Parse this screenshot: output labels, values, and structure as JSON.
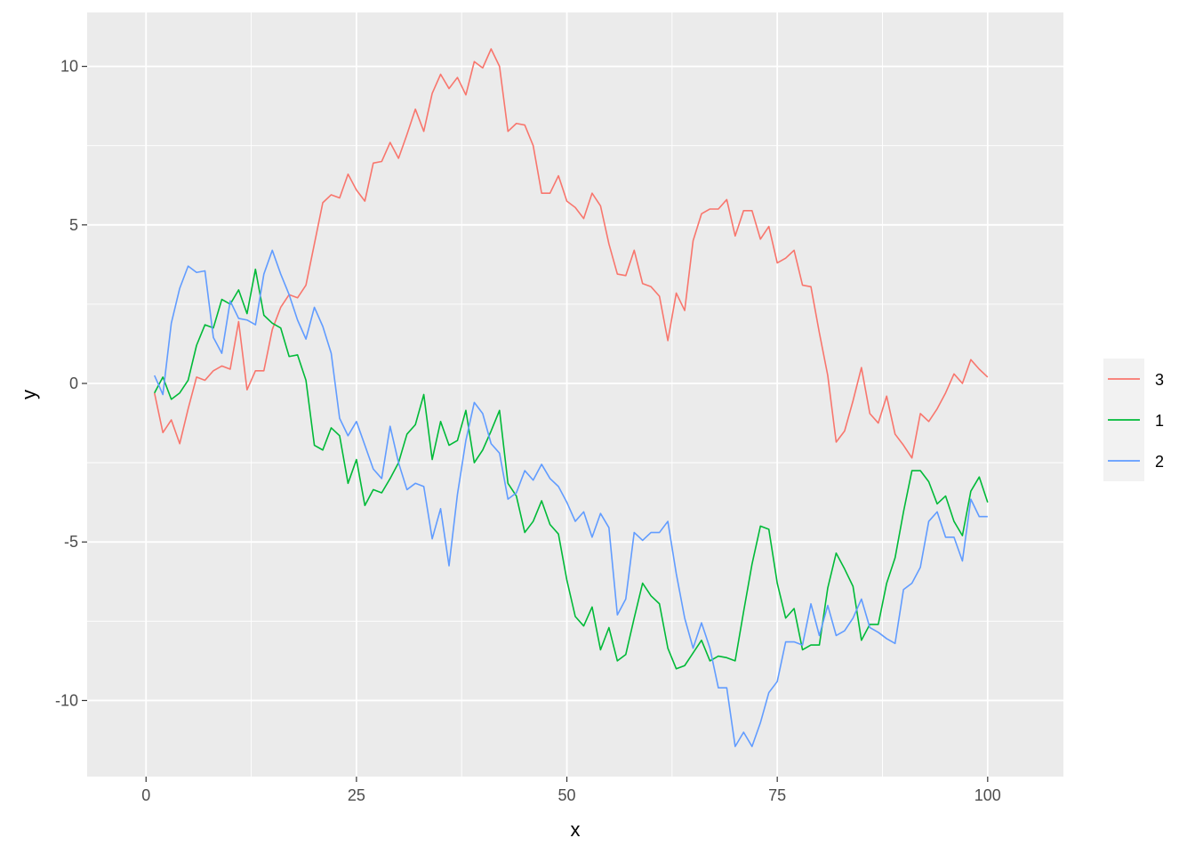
{
  "chart_data": {
    "type": "line",
    "xlabel": "x",
    "ylabel": "y",
    "xlim": [
      -7,
      109
    ],
    "ylim": [
      -12.4,
      11.7
    ],
    "x_ticks": [
      0,
      25,
      50,
      75,
      100
    ],
    "x_tick_labels": [
      "0",
      "25",
      "50",
      "75",
      "100"
    ],
    "y_ticks": [
      -10,
      -5,
      0,
      5,
      10
    ],
    "y_tick_labels": [
      "-10",
      "-5",
      "0",
      "5",
      "10"
    ],
    "grid": true,
    "panel_background": "#ebebeb",
    "legend_position": "right",
    "x": [
      1,
      2,
      3,
      4,
      5,
      6,
      7,
      8,
      9,
      10,
      11,
      12,
      13,
      14,
      15,
      16,
      17,
      18,
      19,
      20,
      21,
      22,
      23,
      24,
      25,
      26,
      27,
      28,
      29,
      30,
      31,
      32,
      33,
      34,
      35,
      36,
      37,
      38,
      39,
      40,
      41,
      42,
      43,
      44,
      45,
      46,
      47,
      48,
      49,
      50,
      51,
      52,
      53,
      54,
      55,
      56,
      57,
      58,
      59,
      60,
      61,
      62,
      63,
      64,
      65,
      66,
      67,
      68,
      69,
      70,
      71,
      72,
      73,
      74,
      75,
      76,
      77,
      78,
      79,
      80,
      81,
      82,
      83,
      84,
      85,
      86,
      87,
      88,
      89,
      90,
      91,
      92,
      93,
      94,
      95,
      96,
      97,
      98,
      99,
      100
    ],
    "series": [
      {
        "name": "3",
        "color": "#f8766d",
        "values": [
          -0.3,
          -1.55,
          -1.15,
          -1.9,
          -0.8,
          0.2,
          0.1,
          0.4,
          0.55,
          0.45,
          1.95,
          -0.2,
          0.4,
          0.4,
          1.7,
          2.4,
          2.8,
          2.7,
          3.1,
          4.4,
          5.7,
          5.95,
          5.85,
          6.6,
          6.1,
          5.75,
          6.95,
          7.0,
          7.6,
          7.1,
          7.85,
          8.65,
          7.95,
          9.15,
          9.75,
          9.3,
          9.65,
          9.1,
          10.15,
          9.95,
          10.55,
          10.0,
          7.95,
          8.2,
          8.15,
          7.5,
          6.0,
          6.0,
          6.55,
          5.75,
          5.55,
          5.2,
          6.0,
          5.6,
          4.4,
          3.45,
          3.4,
          4.2,
          3.15,
          3.05,
          2.75,
          1.35,
          2.85,
          2.3,
          4.5,
          5.35,
          5.5,
          5.5,
          5.8,
          4.65,
          5.45,
          5.45,
          4.55,
          4.95,
          3.8,
          3.95,
          4.2,
          3.1,
          3.05,
          1.6,
          0.25,
          -1.85,
          -1.5,
          -0.55,
          0.5,
          -0.95,
          -1.25,
          -0.4,
          -1.6,
          -1.95,
          -2.35,
          -0.95,
          -1.2,
          -0.8,
          -0.3,
          0.3,
          0.0,
          0.75,
          0.45,
          0.2
        ]
      },
      {
        "name": "1",
        "color": "#00ba38",
        "values": [
          -0.3,
          0.2,
          -0.5,
          -0.3,
          0.1,
          1.2,
          1.85,
          1.75,
          2.65,
          2.5,
          2.95,
          2.2,
          3.6,
          2.15,
          1.9,
          1.75,
          0.85,
          0.9,
          0.1,
          -1.95,
          -2.1,
          -1.4,
          -1.65,
          -3.15,
          -2.4,
          -3.85,
          -3.35,
          -3.45,
          -3.0,
          -2.5,
          -1.6,
          -1.3,
          -0.35,
          -2.4,
          -1.2,
          -1.95,
          -1.8,
          -0.85,
          -2.5,
          -2.1,
          -1.5,
          -0.85,
          -3.15,
          -3.55,
          -4.7,
          -4.35,
          -3.7,
          -4.45,
          -4.75,
          -6.2,
          -7.35,
          -7.65,
          -7.05,
          -8.4,
          -7.7,
          -8.75,
          -8.55,
          -7.4,
          -6.3,
          -6.7,
          -6.95,
          -8.35,
          -9.0,
          -8.9,
          -8.5,
          -8.1,
          -8.75,
          -8.6,
          -8.65,
          -8.75,
          -7.2,
          -5.7,
          -4.5,
          -4.6,
          -6.3,
          -7.4,
          -7.1,
          -8.4,
          -8.25,
          -8.25,
          -6.45,
          -5.35,
          -5.85,
          -6.4,
          -8.1,
          -7.6,
          -7.6,
          -6.3,
          -5.5,
          -4.05,
          -2.75,
          -2.75,
          -3.1,
          -3.8,
          -3.55,
          -4.35,
          -4.8,
          -3.4,
          -2.95,
          -3.75
        ]
      },
      {
        "name": "2",
        "color": "#619cff",
        "values": [
          0.25,
          -0.35,
          1.9,
          3.0,
          3.7,
          3.5,
          3.55,
          1.45,
          0.95,
          2.6,
          2.05,
          2.0,
          1.85,
          3.45,
          4.2,
          3.45,
          2.8,
          2.0,
          1.4,
          2.4,
          1.8,
          0.95,
          -1.1,
          -1.65,
          -1.2,
          -1.95,
          -2.7,
          -3.0,
          -1.35,
          -2.5,
          -3.35,
          -3.15,
          -3.25,
          -4.9,
          -3.95,
          -5.75,
          -3.5,
          -1.8,
          -0.6,
          -0.95,
          -1.9,
          -2.2,
          -3.65,
          -3.45,
          -2.75,
          -3.05,
          -2.55,
          -3.0,
          -3.25,
          -3.75,
          -4.35,
          -4.05,
          -4.85,
          -4.1,
          -4.55,
          -7.3,
          -6.8,
          -4.7,
          -4.95,
          -4.7,
          -4.7,
          -4.35,
          -6.0,
          -7.4,
          -8.35,
          -7.55,
          -8.35,
          -9.6,
          -9.6,
          -11.45,
          -11.0,
          -11.45,
          -10.7,
          -9.75,
          -9.4,
          -8.15,
          -8.15,
          -8.25,
          -6.95,
          -7.95,
          -7.0,
          -7.95,
          -7.8,
          -7.4,
          -6.8,
          -7.7,
          -7.85,
          -8.05,
          -8.2,
          -6.5,
          -6.3,
          -5.8,
          -4.35,
          -4.05,
          -4.85,
          -4.85,
          -5.6,
          -3.65,
          -4.2,
          -4.2
        ]
      }
    ]
  }
}
